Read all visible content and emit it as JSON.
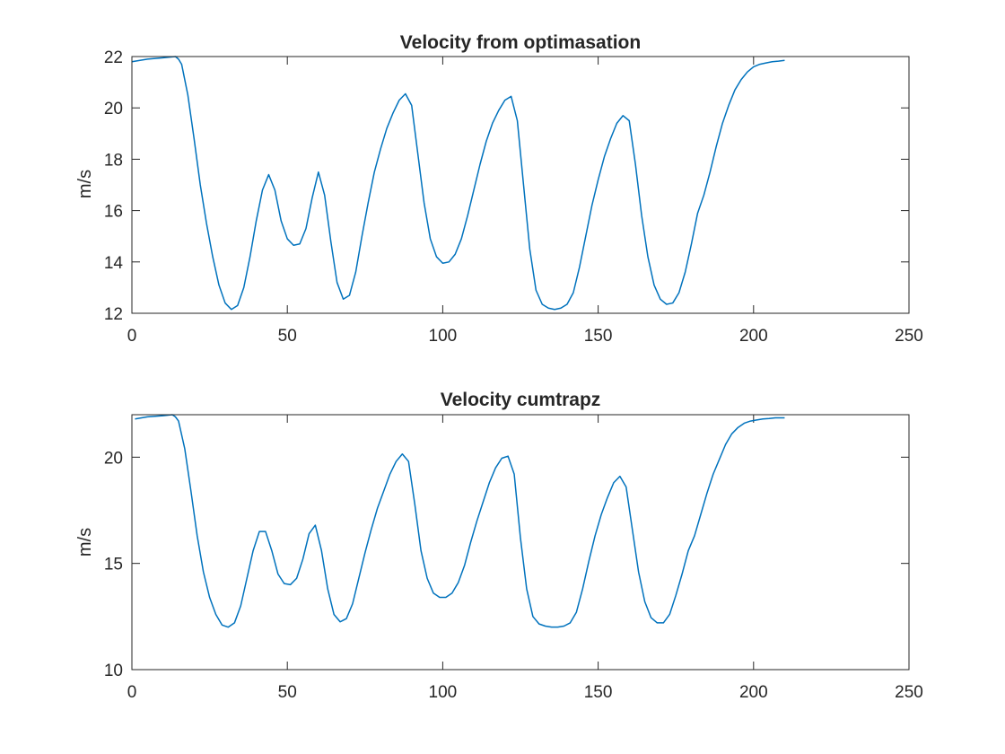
{
  "chart_data": [
    {
      "type": "line",
      "title": "Velocity from optimasation",
      "xlabel": "",
      "ylabel": "m/s",
      "xlim": [
        0,
        250
      ],
      "ylim": [
        12,
        22
      ],
      "xticks": [
        0,
        50,
        100,
        150,
        200,
        250
      ],
      "yticks": [
        12,
        14,
        16,
        18,
        20,
        22
      ],
      "grid": false,
      "series": [
        {
          "color": "#0072BD",
          "x": [
            0,
            5,
            10,
            14,
            15,
            16,
            18,
            20,
            22,
            24,
            26,
            28,
            30,
            32,
            34,
            36,
            38,
            40,
            42,
            44,
            46,
            48,
            50,
            52,
            54,
            56,
            58,
            60,
            62,
            64,
            66,
            68,
            70,
            72,
            74,
            76,
            78,
            80,
            82,
            84,
            86,
            88,
            90,
            92,
            94,
            96,
            98,
            100,
            102,
            104,
            106,
            108,
            110,
            112,
            114,
            116,
            118,
            120,
            122,
            124,
            126,
            128,
            130,
            132,
            134,
            136,
            138,
            140,
            142,
            144,
            146,
            148,
            150,
            152,
            154,
            156,
            158,
            160,
            162,
            164,
            166,
            168,
            170,
            172,
            174,
            176,
            178,
            180,
            182,
            184,
            186,
            188,
            190,
            192,
            194,
            196,
            198,
            200,
            202,
            204,
            206,
            208,
            210
          ],
          "y": [
            21.8,
            21.9,
            21.95,
            22.0,
            21.9,
            21.7,
            20.5,
            18.8,
            17.0,
            15.5,
            14.2,
            13.1,
            12.4,
            12.15,
            12.3,
            13.0,
            14.2,
            15.6,
            16.8,
            17.4,
            16.8,
            15.6,
            14.9,
            14.65,
            14.7,
            15.3,
            16.5,
            17.5,
            16.6,
            14.8,
            13.2,
            12.55,
            12.7,
            13.6,
            15.0,
            16.3,
            17.5,
            18.4,
            19.2,
            19.8,
            20.3,
            20.55,
            20.1,
            18.2,
            16.3,
            14.9,
            14.2,
            13.95,
            14.0,
            14.3,
            14.9,
            15.8,
            16.8,
            17.8,
            18.7,
            19.4,
            19.9,
            20.3,
            20.45,
            19.5,
            17.0,
            14.5,
            12.9,
            12.35,
            12.2,
            12.15,
            12.2,
            12.35,
            12.8,
            13.8,
            15.0,
            16.2,
            17.2,
            18.1,
            18.8,
            19.4,
            19.7,
            19.5,
            17.8,
            15.8,
            14.2,
            13.1,
            12.55,
            12.35,
            12.4,
            12.8,
            13.6,
            14.7,
            15.9,
            16.6,
            17.5,
            18.5,
            19.4,
            20.1,
            20.7,
            21.1,
            21.4,
            21.6,
            21.7,
            21.75,
            21.8,
            21.82,
            21.85
          ]
        }
      ]
    },
    {
      "type": "line",
      "title": "Velocity cumtrapz",
      "xlabel": "",
      "ylabel": "m/s",
      "xlim": [
        0,
        250
      ],
      "ylim": [
        10,
        22
      ],
      "xticks": [
        0,
        50,
        100,
        150,
        200,
        250
      ],
      "yticks": [
        10,
        15,
        20
      ],
      "grid": false,
      "series": [
        {
          "color": "#0072BD",
          "x": [
            1,
            5,
            10,
            13,
            14,
            15,
            17,
            19,
            21,
            23,
            25,
            27,
            29,
            31,
            33,
            35,
            37,
            39,
            41,
            43,
            45,
            47,
            49,
            51,
            53,
            55,
            57,
            59,
            61,
            63,
            65,
            67,
            69,
            71,
            73,
            75,
            77,
            79,
            81,
            83,
            85,
            87,
            89,
            91,
            93,
            95,
            97,
            99,
            101,
            103,
            105,
            107,
            109,
            111,
            113,
            115,
            117,
            119,
            121,
            123,
            125,
            127,
            129,
            131,
            133,
            135,
            137,
            139,
            141,
            143,
            145,
            147,
            149,
            151,
            153,
            155,
            157,
            159,
            161,
            163,
            165,
            167,
            169,
            171,
            173,
            175,
            177,
            179,
            181,
            183,
            185,
            187,
            189,
            191,
            193,
            195,
            197,
            199,
            201,
            203,
            205,
            207,
            210
          ],
          "y": [
            21.8,
            21.9,
            21.95,
            22.0,
            21.9,
            21.7,
            20.4,
            18.4,
            16.3,
            14.6,
            13.4,
            12.6,
            12.1,
            12.0,
            12.2,
            13.0,
            14.3,
            15.6,
            16.5,
            16.5,
            15.6,
            14.5,
            14.05,
            14.0,
            14.3,
            15.2,
            16.4,
            16.8,
            15.6,
            13.8,
            12.6,
            12.25,
            12.4,
            13.1,
            14.3,
            15.5,
            16.6,
            17.6,
            18.4,
            19.2,
            19.8,
            20.15,
            19.8,
            17.8,
            15.6,
            14.3,
            13.6,
            13.4,
            13.4,
            13.6,
            14.1,
            14.9,
            16.0,
            17.0,
            17.9,
            18.8,
            19.5,
            19.95,
            20.05,
            19.2,
            16.2,
            13.8,
            12.5,
            12.15,
            12.05,
            12.0,
            12.0,
            12.05,
            12.2,
            12.7,
            13.8,
            15.1,
            16.3,
            17.3,
            18.1,
            18.8,
            19.1,
            18.6,
            16.6,
            14.6,
            13.2,
            12.45,
            12.2,
            12.2,
            12.6,
            13.5,
            14.5,
            15.6,
            16.3,
            17.3,
            18.3,
            19.2,
            19.9,
            20.6,
            21.1,
            21.4,
            21.6,
            21.7,
            21.75,
            21.8,
            21.82,
            21.85,
            21.85
          ]
        }
      ]
    }
  ]
}
